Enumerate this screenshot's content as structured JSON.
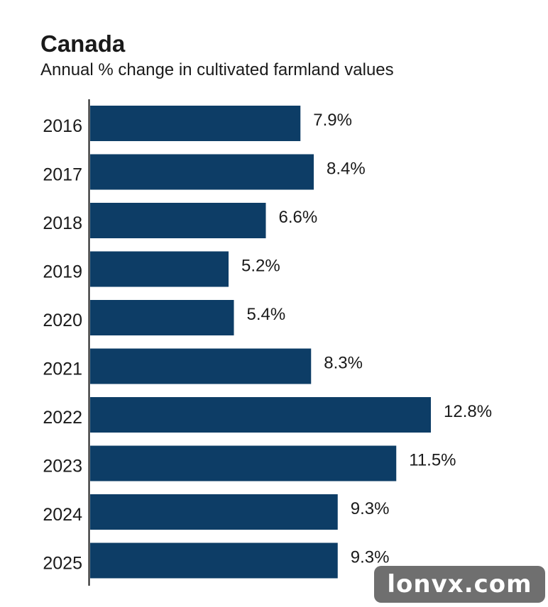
{
  "chart_data": {
    "type": "bar",
    "orientation": "horizontal",
    "title": "Canada",
    "subtitle": "Annual % change in cultivated farmland values",
    "categories": [
      "2016",
      "2017",
      "2018",
      "2019",
      "2020",
      "2021",
      "2022",
      "2023",
      "2024",
      "2025"
    ],
    "values": [
      7.9,
      8.4,
      6.6,
      5.2,
      5.4,
      8.3,
      12.8,
      11.5,
      9.3,
      9.3
    ],
    "data_labels": [
      "7.9%",
      "8.4%",
      "6.6%",
      "5.2%",
      "5.4%",
      "8.3%",
      "12.8%",
      "11.5%",
      "9.3%",
      "9.3%"
    ],
    "xlim": [
      0,
      14
    ],
    "grid": false,
    "legend": "none",
    "bar_color": "#0d3d66"
  },
  "watermark": "lonvx.com"
}
